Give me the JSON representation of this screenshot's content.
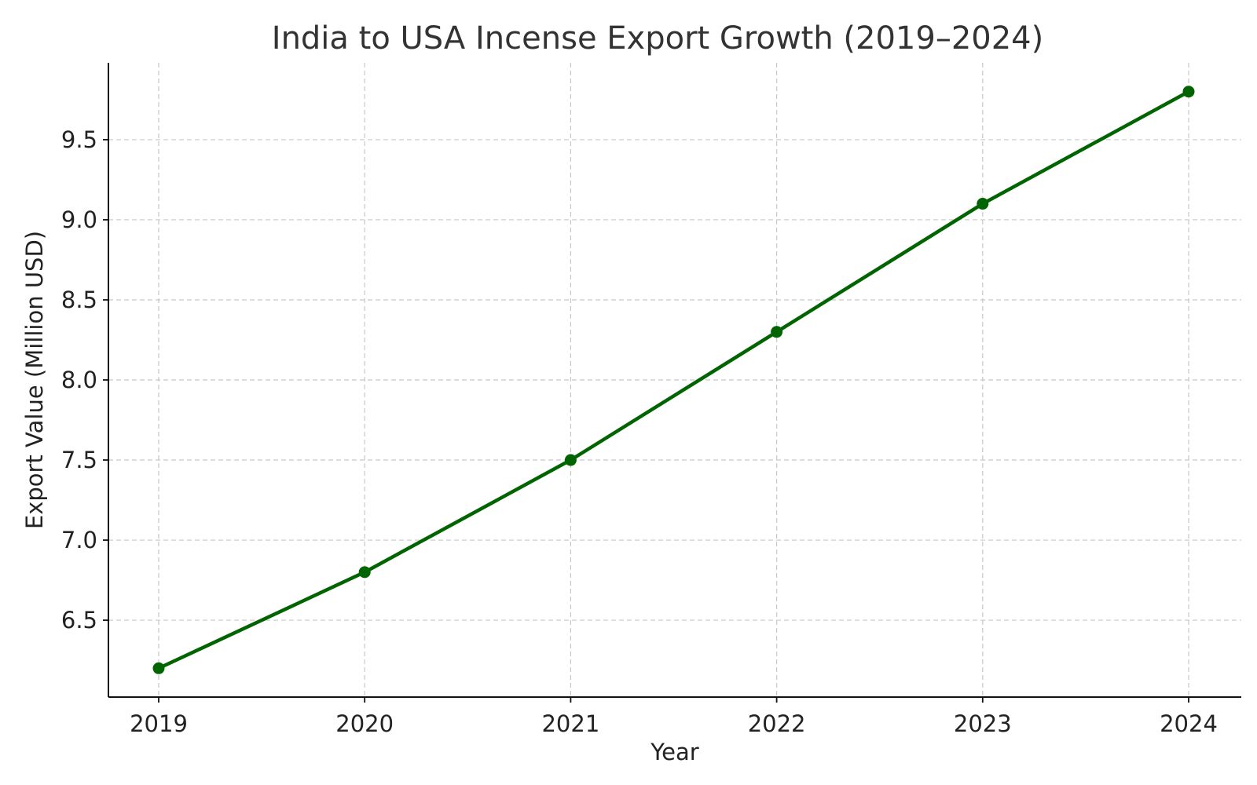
{
  "chart_data": {
    "type": "line",
    "title": "India to USA Incense Export Growth (2019–2024)",
    "xlabel": "Year",
    "ylabel": "Export Value (Million USD)",
    "x": [
      "2019",
      "2020",
      "2021",
      "2022",
      "2023",
      "2024"
    ],
    "series": [
      {
        "values": [
          6.2,
          6.8,
          7.5,
          8.3,
          9.1,
          9.8
        ],
        "color": "#006400",
        "marker": "circle"
      }
    ],
    "yticks": [
      "6.5",
      "7.0",
      "7.5",
      "8.0",
      "8.5",
      "9.0",
      "9.5"
    ],
    "ylim": [
      6.02,
      9.98
    ],
    "grid": true,
    "legend": "none"
  }
}
